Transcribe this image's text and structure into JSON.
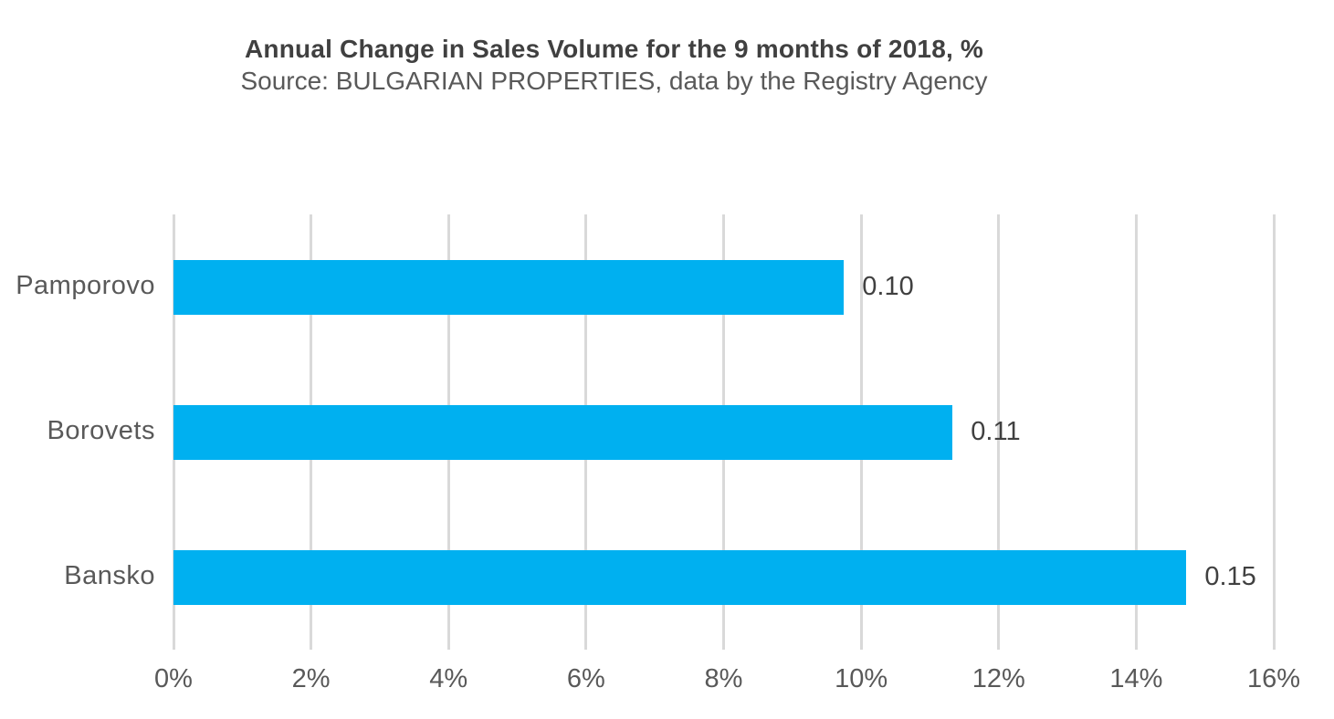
{
  "chart_data": {
    "type": "bar",
    "orientation": "horizontal",
    "title": "Annual Change in Sales Volume for the 9 months of 2018, %",
    "subtitle": "Source: BULGARIAN PROPERTIES, data by the Registry Agency",
    "categories": [
      "Pamporovo",
      "Borovets",
      "Bansko"
    ],
    "values_percent": [
      9.75,
      11.33,
      14.73
    ],
    "data_labels": [
      "0.10",
      "0.11",
      "0.15"
    ],
    "x_ticks": [
      "0%",
      "2%",
      "4%",
      "6%",
      "8%",
      "10%",
      "12%",
      "14%",
      "16%"
    ],
    "xlim": [
      0,
      16
    ],
    "grid": "vertical",
    "legend": "none",
    "colors": {
      "bar": "#00B0F0",
      "gridline": "#D9D9D9",
      "title_text": "#404040",
      "subtitle_text": "#595959",
      "axis_text": "#595959",
      "data_label_text": "#404040"
    }
  }
}
